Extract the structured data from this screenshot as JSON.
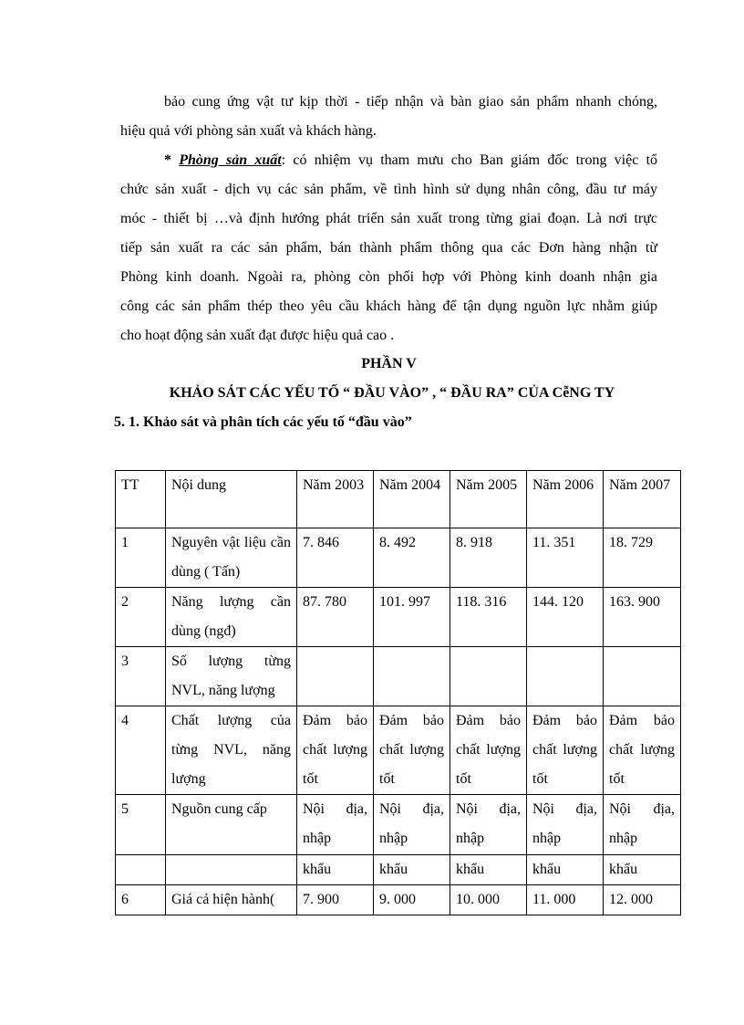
{
  "paragraph1": {
    "lines": [
      "bảo cung ứng vật tư kịp thời - tiếp nhận và bàn giao sản phẩm nhanh chóng,",
      "hiệu quả với phòng sản xuất và khách hàng."
    ]
  },
  "paragraph2": {
    "prefix": "* ",
    "heading": "Phòng sản xuất",
    "lines": [
      ": có nhiệm vụ tham mưu cho Ban giám đốc trong việc tổ",
      "chức sản xuất - dịch vụ các sản phẩm, về tình hình sử dụng nhân công, đầu tư máy",
      "móc - thiết bị …và định hướng phát triển sản xuất trong từng giai đoạn. Là nơi trực",
      "tiếp sản xuất ra các sản phẩm, bán thành phẩm thông qua các Đơn hàng nhận từ",
      "Phòng kinh doanh. Ngoài ra, phòng còn phối hợp với Phòng kinh doanh nhận gia",
      "công các sản phẩm thép theo yêu cầu khách hàng để tận dụng nguồn lực nhằm giúp",
      "cho hoạt động sản xuất đạt được hiệu quả cao ."
    ]
  },
  "part_title": "PHẦN V",
  "part_subtitle": "KHẢO SÁT CÁC YẾU TỐ “ ĐẦU VÀO” , “ ĐẦU RA” CỦA CễNG TY",
  "section_title": "5. 1. Khảo sát và phân tích các yếu tố “đầu vào”",
  "table": {
    "headers": [
      "TT",
      "Nội dung",
      "Năm 2003",
      "Năm 2004",
      "Năm 2005",
      "Năm 2006",
      "Năm 2007"
    ],
    "rows": [
      [
        "1",
        "Nguyên vật liệu cần dùng ( Tấn)",
        "7. 846",
        "8. 492",
        "8. 918",
        "11. 351",
        "18. 729"
      ],
      [
        "2",
        "Năng lượng cần dùng (ngđ)",
        "87. 780",
        "101. 997",
        "118. 316",
        "144. 120",
        "163. 900"
      ],
      [
        "3",
        "Số lượng từng NVL, năng lượng",
        "",
        "",
        "",
        "",
        ""
      ],
      [
        "4",
        "Chất lượng của từng NVL, năng lượng",
        "Đảm bảo chất lượng tốt",
        "Đảm bảo chất lượng tốt",
        "Đảm bảo chất lượng tốt",
        "Đảm bảo chất lượng tốt",
        "Đảm bảo chất lượng tốt"
      ],
      [
        "5",
        "Nguồn cung cấp",
        "Nội địa, nhập",
        "Nội địa, nhập",
        "Nội địa, nhập",
        "Nội địa, nhập",
        "Nội địa, nhập"
      ],
      [
        "",
        "",
        "khẩu",
        "khẩu",
        "khẩu",
        "khẩu",
        "khẩu"
      ],
      [
        "6",
        "Giá cả hiện hành(",
        "7. 900",
        "9. 000",
        "10. 000",
        "11. 000",
        "12. 000"
      ]
    ]
  }
}
